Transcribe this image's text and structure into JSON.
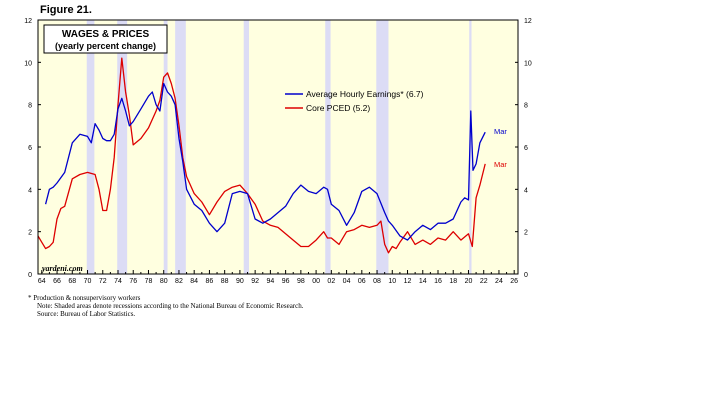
{
  "figure_label": "Figure 21.",
  "chart_data": {
    "type": "line",
    "title": "WAGES & PRICES",
    "subtitle": "(yearly percent change)",
    "ylim": [
      0,
      12
    ],
    "yticks": [
      0,
      2,
      4,
      6,
      8,
      10,
      12
    ],
    "xlim": [
      1963.5,
      2026.5
    ],
    "xtick_years": [
      1964,
      1966,
      1968,
      1970,
      1972,
      1974,
      1976,
      1978,
      1980,
      1982,
      1984,
      1986,
      1988,
      1990,
      1992,
      1994,
      1996,
      1998,
      2000,
      2002,
      2004,
      2006,
      2008,
      2010,
      2012,
      2014,
      2016,
      2018,
      2020,
      2022,
      2024,
      2026
    ],
    "xtick_labels": [
      "64",
      "66",
      "68",
      "70",
      "72",
      "74",
      "76",
      "78",
      "80",
      "82",
      "84",
      "86",
      "88",
      "90",
      "92",
      "94",
      "96",
      "98",
      "00",
      "02",
      "04",
      "06",
      "08",
      "10",
      "12",
      "14",
      "16",
      "18",
      "20",
      "22",
      "24",
      "26"
    ],
    "grid": false,
    "legend_position": "center-right",
    "colors": {
      "background": "#ffffe0",
      "recession": "#dcdcf5",
      "ahe": "#0000cc",
      "pce": "#dd0000"
    },
    "recessions": [
      [
        1969.9,
        1970.9
      ],
      [
        1973.9,
        1975.2
      ],
      [
        1980.0,
        1980.5
      ],
      [
        1981.5,
        1982.9
      ],
      [
        1990.5,
        1991.2
      ],
      [
        2001.2,
        2001.9
      ],
      [
        2007.9,
        2009.5
      ],
      [
        2020.1,
        2020.4
      ]
    ],
    "series": [
      {
        "name": "Average Hourly Earnings* (6.7)",
        "end_label": "Mar",
        "x": [
          1964.5,
          1965,
          1965.5,
          1966,
          1967,
          1968,
          1969,
          1970,
          1970.5,
          1971,
          1971.5,
          1972,
          1972.5,
          1973,
          1973.5,
          1974,
          1974.5,
          1975,
          1975.5,
          1976,
          1977,
          1978,
          1978.5,
          1979,
          1979.5,
          1980,
          1980.5,
          1981,
          1981.5,
          1982,
          1982.5,
          1983,
          1984,
          1985,
          1986,
          1987,
          1988,
          1989,
          1990,
          1991,
          1992,
          1993,
          1994,
          1995,
          1996,
          1997,
          1998,
          1999,
          2000,
          2001,
          2001.5,
          2002,
          2003,
          2004,
          2005,
          2006,
          2007,
          2008,
          2009,
          2009.5,
          2010,
          2011,
          2012,
          2013,
          2014,
          2015,
          2016,
          2017,
          2018,
          2019,
          2019.5,
          2020,
          2020.3,
          2020.6,
          2021,
          2021.5,
          2022.2
        ],
        "values": [
          3.3,
          4.0,
          4.1,
          4.3,
          4.8,
          6.2,
          6.6,
          6.5,
          6.2,
          7.1,
          6.8,
          6.4,
          6.3,
          6.3,
          6.6,
          7.8,
          8.3,
          7.7,
          7.0,
          7.2,
          7.8,
          8.4,
          8.6,
          8.0,
          7.7,
          9.0,
          8.6,
          8.4,
          8.0,
          6.4,
          5.3,
          4.0,
          3.3,
          3.0,
          2.4,
          2.0,
          2.4,
          3.8,
          3.9,
          3.8,
          2.6,
          2.4,
          2.6,
          2.9,
          3.2,
          3.8,
          4.2,
          3.9,
          3.8,
          4.1,
          4.0,
          3.3,
          3.0,
          2.3,
          2.9,
          3.9,
          4.1,
          3.8,
          2.9,
          2.5,
          2.3,
          1.8,
          1.6,
          2.0,
          2.3,
          2.1,
          2.4,
          2.4,
          2.6,
          3.4,
          3.6,
          3.5,
          7.7,
          4.9,
          5.2,
          6.2,
          6.7
        ]
      },
      {
        "name": "Core PCED (5.2)",
        "end_label": "Mar",
        "x": [
          1963.5,
          1964,
          1964.5,
          1965,
          1965.5,
          1966,
          1966.5,
          1967,
          1968,
          1969,
          1970,
          1971,
          1971.5,
          1972,
          1972.5,
          1973,
          1973.5,
          1974,
          1974.5,
          1975,
          1975.5,
          1976,
          1977,
          1978,
          1979,
          1979.5,
          1980,
          1980.5,
          1981,
          1981.5,
          1982,
          1982.5,
          1983,
          1983.5,
          1984,
          1985,
          1986,
          1987,
          1988,
          1989,
          1990,
          1991,
          1992,
          1993,
          1994,
          1995,
          1996,
          1997,
          1998,
          1999,
          2000,
          2001,
          2001.5,
          2002,
          2003,
          2004,
          2005,
          2006,
          2007,
          2008,
          2008.5,
          2009,
          2009.5,
          2010,
          2010.5,
          2011,
          2012,
          2013,
          2014,
          2015,
          2016,
          2017,
          2018,
          2019,
          2020,
          2020.5,
          2021,
          2021.5,
          2022.2
        ],
        "values": [
          1.8,
          1.5,
          1.2,
          1.3,
          1.5,
          2.6,
          3.1,
          3.2,
          4.5,
          4.7,
          4.8,
          4.7,
          4.0,
          3.0,
          3.0,
          4.0,
          5.5,
          8.0,
          10.2,
          8.6,
          7.5,
          6.1,
          6.4,
          6.9,
          7.7,
          8.2,
          9.3,
          9.5,
          9.0,
          8.3,
          7.0,
          5.5,
          4.6,
          4.2,
          3.8,
          3.4,
          2.8,
          3.4,
          3.9,
          4.1,
          4.2,
          3.8,
          3.3,
          2.5,
          2.3,
          2.2,
          1.9,
          1.6,
          1.3,
          1.3,
          1.6,
          2.0,
          1.7,
          1.7,
          1.4,
          2.0,
          2.1,
          2.3,
          2.2,
          2.3,
          2.5,
          1.4,
          1.0,
          1.3,
          1.2,
          1.5,
          2.0,
          1.4,
          1.6,
          1.4,
          1.7,
          1.6,
          2.0,
          1.6,
          1.9,
          1.3,
          3.6,
          4.2,
          5.2
        ]
      }
    ]
  },
  "watermark": "yardeni.com",
  "notes": [
    "* Production & nonsupervisory workers",
    "Note: Shaded areas denote recessions according to the National Bureau of Economic Research.",
    "Source: Bureau of Labor Statistics."
  ]
}
